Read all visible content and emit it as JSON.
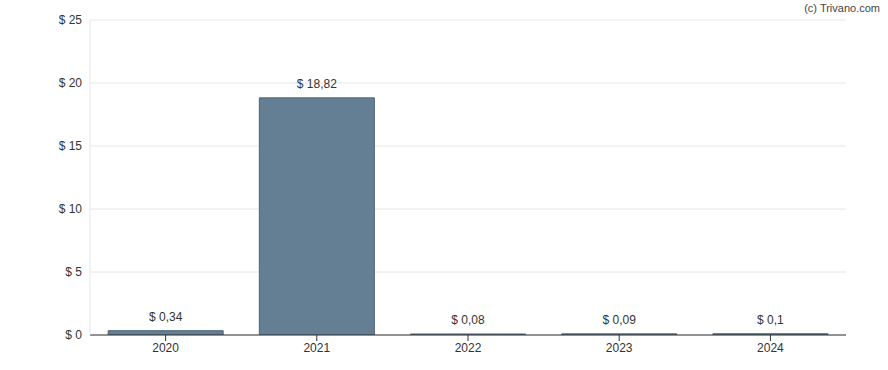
{
  "chart_data": {
    "type": "bar",
    "annotations": [
      "(c) Trivano.com"
    ],
    "categories": [
      "2020",
      "2021",
      "2022",
      "2023",
      "2024"
    ],
    "values": [
      0.34,
      18.82,
      0.08,
      0.09,
      0.1
    ],
    "value_labels": [
      "$ 0,34",
      "$ 18,82",
      "$ 0,08",
      "$ 0,09",
      "$ 0,1"
    ],
    "data_labels": true,
    "color": "#647f94",
    "ylim": [
      0,
      25
    ],
    "yticks": [
      {
        "value": 0,
        "label": "$ 0"
      },
      {
        "value": 5,
        "label": "$ 5"
      },
      {
        "value": 10,
        "label": "$ 10"
      },
      {
        "value": 15,
        "label": "$ 15"
      },
      {
        "value": 20,
        "label": "$ 20"
      },
      {
        "value": 25,
        "label": "$ 25"
      }
    ],
    "grid": true
  }
}
